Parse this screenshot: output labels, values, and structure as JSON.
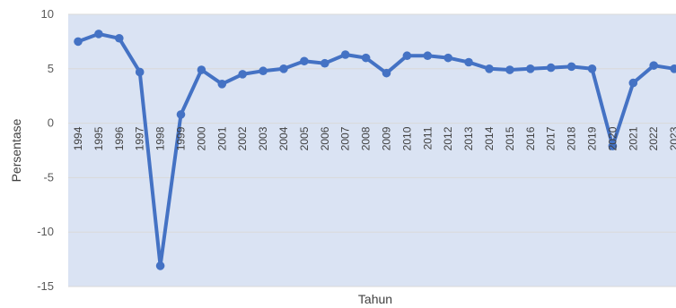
{
  "chart_data": {
    "type": "line",
    "title": "",
    "xlabel": "Tahun",
    "ylabel": "Persentase",
    "ylim": [
      -15,
      10
    ],
    "yticks": [
      10,
      5,
      0,
      -5,
      -10,
      -15
    ],
    "grid": true,
    "legend": "none",
    "colors": {
      "plot_background": "#dae3f3",
      "line": "#4472c4",
      "gridline": "#d9d9d9"
    },
    "x": [
      "1994",
      "1995",
      "1996",
      "1997",
      "1998",
      "1999",
      "2000",
      "2001",
      "2002",
      "2003",
      "2004",
      "2005",
      "2006",
      "2007",
      "2008",
      "2009",
      "2010",
      "2011",
      "2012",
      "2013",
      "2014",
      "2015",
      "2016",
      "2017",
      "2018",
      "2019",
      "2020",
      "2021",
      "2022",
      "2023"
    ],
    "series": [
      {
        "values": [
          7.5,
          8.2,
          7.8,
          4.7,
          -13.1,
          0.8,
          4.9,
          3.6,
          4.5,
          4.8,
          5.0,
          5.7,
          5.5,
          6.3,
          6.0,
          4.6,
          6.2,
          6.2,
          6.0,
          5.6,
          5.0,
          4.9,
          5.0,
          5.1,
          5.2,
          5.0,
          -2.1,
          3.7,
          5.3,
          5.0
        ]
      }
    ]
  }
}
